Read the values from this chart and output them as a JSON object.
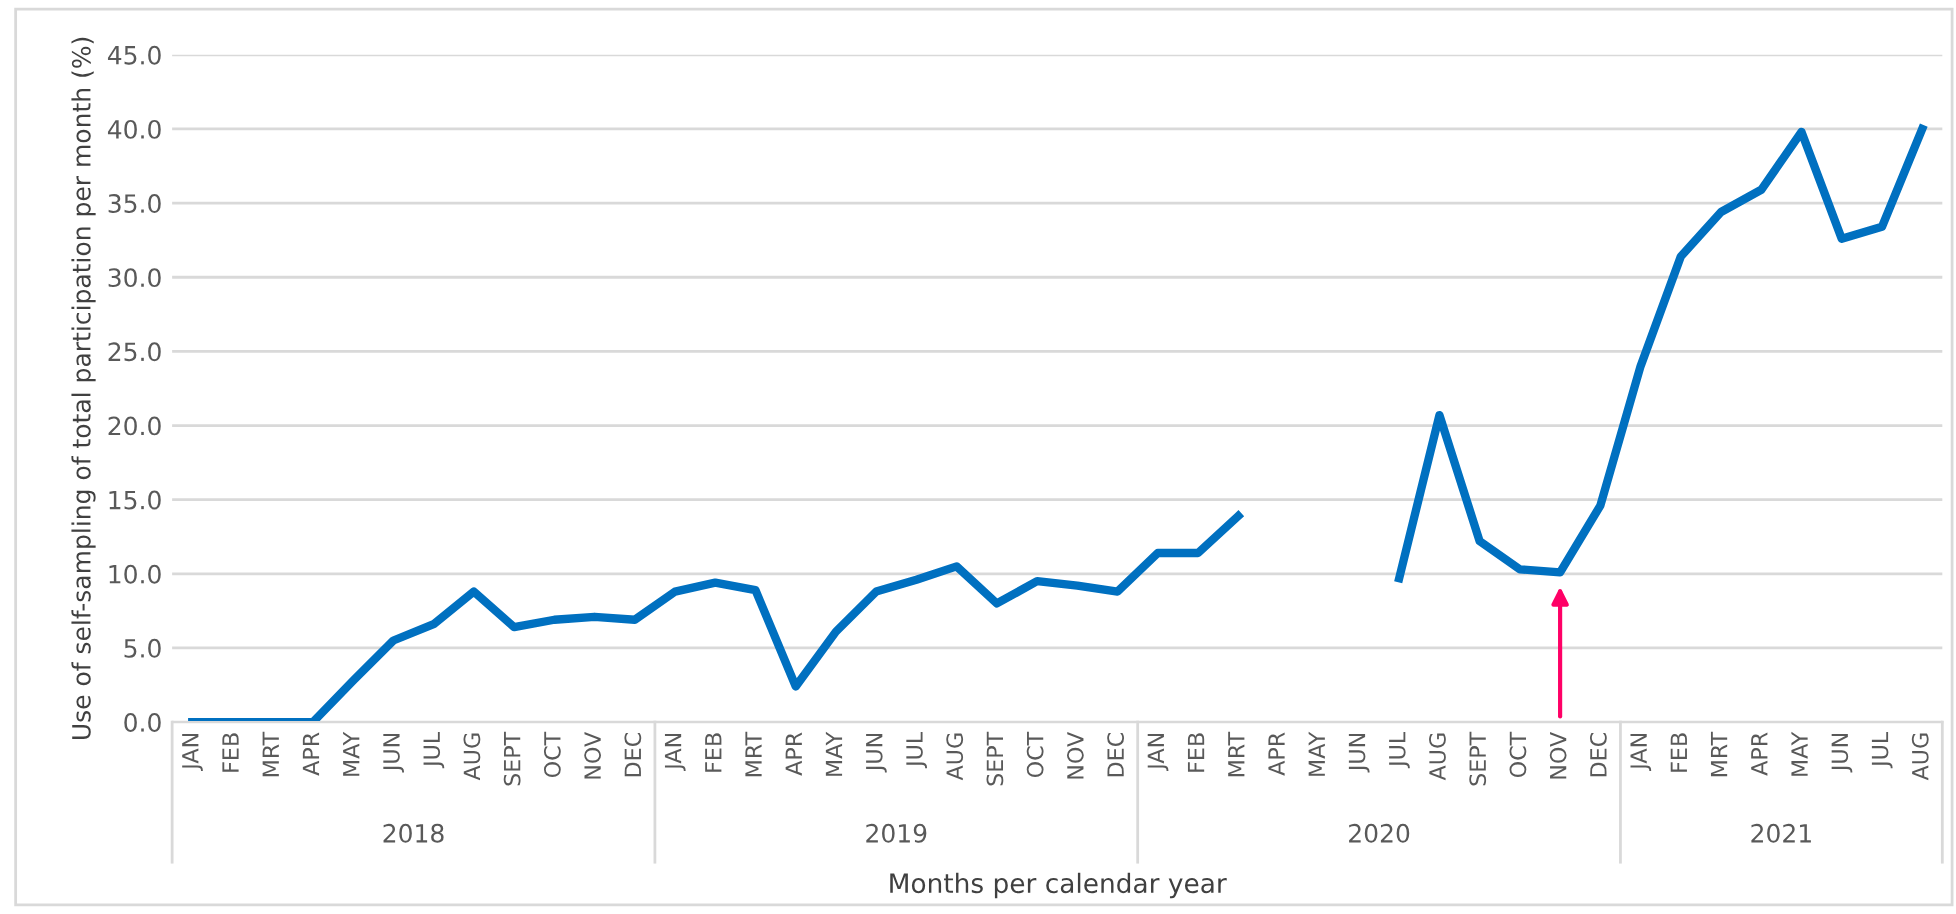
{
  "chart_data": {
    "type": "line",
    "ylabel": "Use of self-sampling of total participation per month (%)",
    "xlabel": "Months per calendar year",
    "categories": [
      "JAN",
      "FEB",
      "MRT",
      "APR",
      "MAY",
      "JUN",
      "JUL",
      "AUG",
      "SEPT",
      "OCT",
      "NOV",
      "DEC",
      "JAN",
      "FEB",
      "MRT",
      "APR",
      "MAY",
      "JUN",
      "JUL",
      "AUG",
      "SEPT",
      "OCT",
      "NOV",
      "DEC",
      "JAN",
      "FEB",
      "MRT",
      "APR",
      "MAY",
      "JUN",
      "JUL",
      "AUG",
      "SEPT",
      "OCT",
      "NOV",
      "DEC",
      "JAN",
      "FEB",
      "MRT",
      "APR",
      "MAY",
      "JUN",
      "JUL",
      "AUG"
    ],
    "series": [
      {
        "color": "#0070c0",
        "values": [
          0,
          0,
          0,
          0,
          2.8,
          5.5,
          6.6,
          8.8,
          6.4,
          6.9,
          7.1,
          6.9,
          8.8,
          9.4,
          8.9,
          2.4,
          6.1,
          8.8,
          9.6,
          10.5,
          8.0,
          9.5,
          9.2,
          8.8,
          11.4,
          11.4,
          13.9,
          null,
          null,
          null,
          9.7,
          20.7,
          12.2,
          10.3,
          10.1,
          14.6,
          24.0,
          31.4,
          34.4,
          35.9,
          39.8,
          32.6,
          33.4,
          40.0
        ]
      }
    ],
    "annotations": [
      "2018",
      "2019",
      "2020",
      "2021"
    ],
    "ylim": [
      0,
      45
    ],
    "yticks": [
      {
        "value": 0,
        "label": "0.0"
      },
      {
        "value": 5,
        "label": "5.0"
      },
      {
        "value": 10,
        "label": "10.0"
      },
      {
        "value": 15,
        "label": "15.0"
      },
      {
        "value": 20,
        "label": "20.0"
      },
      {
        "value": 25,
        "label": "25.0"
      },
      {
        "value": 30,
        "label": "30.0"
      },
      {
        "value": 35,
        "label": "35.0"
      },
      {
        "value": 40,
        "label": "40.0"
      },
      {
        "value": 45,
        "label": "45.0"
      }
    ],
    "grid": "y",
    "legend": false,
    "marker": "none",
    "line_style": "solid"
  }
}
